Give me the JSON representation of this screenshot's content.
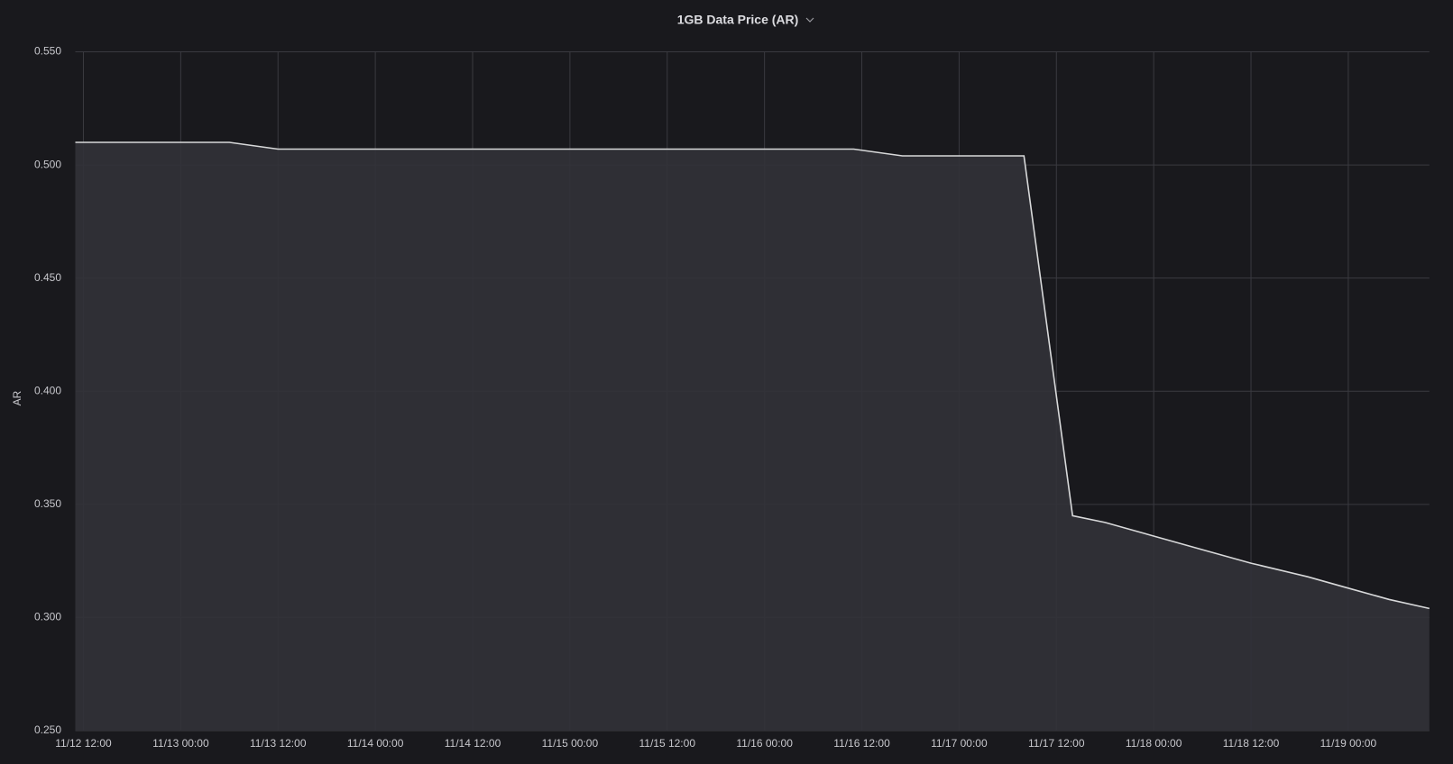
{
  "chart_data": {
    "type": "area",
    "title": "1GB Data Price (AR)",
    "y_label": "AR",
    "x": [
      "11/12 11:00",
      "11/13 06:00",
      "11/13 12:00",
      "11/16 11:00",
      "11/16 17:00",
      "11/17 08:00",
      "11/17 14:00",
      "11/17 18:00",
      "11/18 00:00",
      "11/18 06:00",
      "11/18 12:00",
      "11/18 19:00",
      "11/19 00:00",
      "11/19 05:00",
      "11/19 10:00"
    ],
    "values": [
      0.51,
      0.51,
      0.507,
      0.507,
      0.504,
      0.504,
      0.345,
      0.342,
      0.336,
      0.33,
      0.324,
      0.318,
      0.313,
      0.308,
      0.304
    ],
    "color": "#d8d9da",
    "fill": "#323238",
    "xlim": [
      "11/12 11:00",
      "11/19 10:00"
    ],
    "xticks": [
      "11/12 12:00",
      "11/13 00:00",
      "11/13 12:00",
      "11/14 00:00",
      "11/14 12:00",
      "11/15 00:00",
      "11/15 12:00",
      "11/16 00:00",
      "11/16 12:00",
      "11/17 00:00",
      "11/17 12:00",
      "11/18 00:00",
      "11/18 12:00",
      "11/19 00:00"
    ],
    "ylim": [
      0.25,
      0.55
    ],
    "yticks": [
      {
        "value": 0.25,
        "label": "0.250"
      },
      {
        "value": 0.3,
        "label": "0.300"
      },
      {
        "value": 0.35,
        "label": "0.350"
      },
      {
        "value": 0.4,
        "label": "0.400"
      },
      {
        "value": 0.45,
        "label": "0.450"
      },
      {
        "value": 0.5,
        "label": "0.500"
      },
      {
        "value": 0.55,
        "label": "0.550"
      }
    ],
    "grid": true
  }
}
